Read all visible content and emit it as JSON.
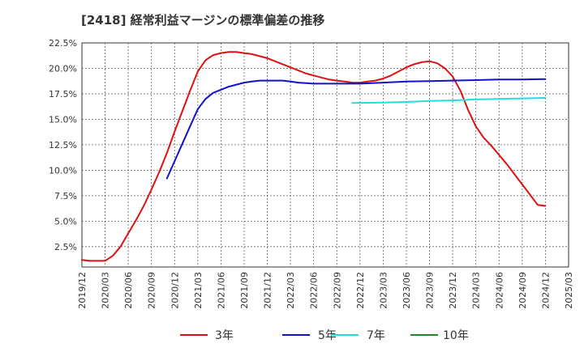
{
  "title": "[2418]  経常利益マージンの標準偏差の推移",
  "chart_data": {
    "type": "line",
    "title": "[2418]  経常利益マージンの標準偏差の推移",
    "xlabel": "",
    "ylabel": "",
    "ylim": [
      0.5,
      22.5
    ],
    "y_ticks": [
      2.5,
      5.0,
      7.5,
      10.0,
      12.5,
      15.0,
      17.5,
      20.0,
      22.5
    ],
    "y_tick_labels": [
      "2.5%",
      "5.0%",
      "7.5%",
      "10.0%",
      "12.5%",
      "15.0%",
      "17.5%",
      "20.0%",
      "22.5%"
    ],
    "x_tick_labels": [
      "2019/12",
      "2020/03",
      "2020/06",
      "2020/09",
      "2020/12",
      "2021/03",
      "2021/06",
      "2021/09",
      "2021/12",
      "2022/03",
      "2022/06",
      "2022/09",
      "2022/12",
      "2023/03",
      "2023/06",
      "2023/09",
      "2023/12",
      "2024/03",
      "2024/06",
      "2024/09",
      "2024/12",
      "2025/03"
    ],
    "grid": true,
    "legend_position": "bottom",
    "series": [
      {
        "name": "3年",
        "color": "#dd1111",
        "points": [
          [
            "2019/12",
            1.2
          ],
          [
            "2020/01",
            1.1
          ],
          [
            "2020/02",
            1.1
          ],
          [
            "2020/03",
            1.1
          ],
          [
            "2020/04",
            1.6
          ],
          [
            "2020/05",
            2.5
          ],
          [
            "2020/06",
            3.8
          ],
          [
            "2020/07",
            5.1
          ],
          [
            "2020/08",
            6.5
          ],
          [
            "2020/09",
            8.1
          ],
          [
            "2020/10",
            9.8
          ],
          [
            "2020/11",
            11.7
          ],
          [
            "2020/12",
            13.8
          ],
          [
            "2021/01",
            15.8
          ],
          [
            "2021/02",
            17.8
          ],
          [
            "2021/03",
            19.7
          ],
          [
            "2021/04",
            20.8
          ],
          [
            "2021/05",
            21.3
          ],
          [
            "2021/06",
            21.5
          ],
          [
            "2021/07",
            21.6
          ],
          [
            "2021/08",
            21.6
          ],
          [
            "2021/09",
            21.5
          ],
          [
            "2021/10",
            21.4
          ],
          [
            "2021/11",
            21.2
          ],
          [
            "2021/12",
            21.0
          ],
          [
            "2022/01",
            20.7
          ],
          [
            "2022/02",
            20.4
          ],
          [
            "2022/03",
            20.1
          ],
          [
            "2022/04",
            19.8
          ],
          [
            "2022/05",
            19.5
          ],
          [
            "2022/06",
            19.3
          ],
          [
            "2022/07",
            19.1
          ],
          [
            "2022/08",
            18.9
          ],
          [
            "2022/09",
            18.8
          ],
          [
            "2022/10",
            18.7
          ],
          [
            "2022/11",
            18.6
          ],
          [
            "2022/12",
            18.6
          ],
          [
            "2023/01",
            18.7
          ],
          [
            "2023/02",
            18.8
          ],
          [
            "2023/03",
            19.0
          ],
          [
            "2023/04",
            19.3
          ],
          [
            "2023/05",
            19.7
          ],
          [
            "2023/06",
            20.1
          ],
          [
            "2023/07",
            20.4
          ],
          [
            "2023/08",
            20.6
          ],
          [
            "2023/09",
            20.7
          ],
          [
            "2023/10",
            20.5
          ],
          [
            "2023/11",
            20.0
          ],
          [
            "2023/12",
            19.2
          ],
          [
            "2024/01",
            17.8
          ],
          [
            "2024/02",
            15.9
          ],
          [
            "2024/03",
            14.3
          ],
          [
            "2024/04",
            13.2
          ],
          [
            "2024/05",
            12.4
          ],
          [
            "2024/06",
            11.5
          ],
          [
            "2024/07",
            10.6
          ],
          [
            "2024/08",
            9.6
          ],
          [
            "2024/09",
            8.6
          ],
          [
            "2024/10",
            7.6
          ],
          [
            "2024/11",
            6.6
          ],
          [
            "2024/12",
            6.5
          ]
        ]
      },
      {
        "name": "5年",
        "color": "#1111cc",
        "points": [
          [
            "2020/11",
            9.2
          ],
          [
            "2020/12",
            10.9
          ],
          [
            "2021/01",
            12.6
          ],
          [
            "2021/02",
            14.3
          ],
          [
            "2021/03",
            16.0
          ],
          [
            "2021/04",
            17.0
          ],
          [
            "2021/05",
            17.6
          ],
          [
            "2021/06",
            17.9
          ],
          [
            "2021/07",
            18.2
          ],
          [
            "2021/08",
            18.4
          ],
          [
            "2021/09",
            18.6
          ],
          [
            "2021/10",
            18.7
          ],
          [
            "2021/11",
            18.8
          ],
          [
            "2021/12",
            18.8
          ],
          [
            "2022/01",
            18.8
          ],
          [
            "2022/02",
            18.8
          ],
          [
            "2022/03",
            18.7
          ],
          [
            "2022/04",
            18.6
          ],
          [
            "2022/05",
            18.55
          ],
          [
            "2022/06",
            18.5
          ],
          [
            "2022/07",
            18.5
          ],
          [
            "2022/08",
            18.5
          ],
          [
            "2022/09",
            18.5
          ],
          [
            "2022/10",
            18.5
          ],
          [
            "2022/11",
            18.5
          ],
          [
            "2022/12",
            18.5
          ],
          [
            "2023/03",
            18.6
          ],
          [
            "2023/06",
            18.7
          ],
          [
            "2023/09",
            18.75
          ],
          [
            "2023/12",
            18.8
          ],
          [
            "2024/03",
            18.85
          ],
          [
            "2024/06",
            18.9
          ],
          [
            "2024/09",
            18.9
          ],
          [
            "2024/12",
            18.95
          ]
        ]
      },
      {
        "name": "7年",
        "color": "#22dddd",
        "points": [
          [
            "2022/11",
            16.6
          ],
          [
            "2023/03",
            16.65
          ],
          [
            "2023/06",
            16.7
          ],
          [
            "2023/09",
            16.8
          ],
          [
            "2023/12",
            16.85
          ],
          [
            "2024/03",
            16.95
          ],
          [
            "2024/06",
            17.0
          ],
          [
            "2024/09",
            17.05
          ],
          [
            "2024/12",
            17.1
          ]
        ]
      },
      {
        "name": "10年",
        "color": "#228822",
        "points": []
      }
    ]
  }
}
